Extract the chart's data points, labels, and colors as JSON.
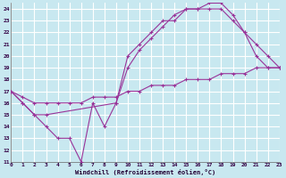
{
  "bg_color": "#c8e8f0",
  "grid_color": "#aaccdd",
  "line_color": "#993399",
  "xlabel": "Windchill (Refroidissement éolien,°C)",
  "xlim": [
    0,
    23
  ],
  "ylim": [
    11,
    24.5
  ],
  "xticks": [
    0,
    1,
    2,
    3,
    4,
    5,
    6,
    7,
    8,
    9,
    10,
    11,
    12,
    13,
    14,
    15,
    16,
    17,
    18,
    19,
    20,
    21,
    22,
    23
  ],
  "yticks": [
    11,
    12,
    13,
    14,
    15,
    16,
    17,
    18,
    19,
    20,
    21,
    22,
    23,
    24
  ],
  "line1_x": [
    0,
    1,
    2,
    3,
    4,
    5,
    6,
    7,
    8,
    9,
    10,
    11,
    12,
    13,
    14,
    15,
    16,
    17,
    18,
    19,
    20,
    21,
    22,
    23
  ],
  "line1_y": [
    17,
    16,
    15,
    14,
    13,
    13,
    11,
    16,
    14,
    16,
    20,
    21,
    22,
    23,
    23,
    24,
    24,
    24,
    24,
    23,
    22,
    20,
    19,
    19
  ],
  "line2_x": [
    0,
    1,
    2,
    3,
    9,
    10,
    11,
    12,
    13,
    14,
    15,
    16,
    17,
    18,
    19,
    20,
    21,
    22,
    23
  ],
  "line2_y": [
    17,
    16,
    15,
    15,
    16,
    19,
    20.5,
    21.5,
    22.5,
    23.5,
    24,
    24,
    24.5,
    24.5,
    23.5,
    22,
    21,
    20,
    19
  ],
  "line3_x": [
    0,
    1,
    2,
    3,
    4,
    5,
    6,
    7,
    8,
    9,
    10,
    11,
    12,
    13,
    14,
    15,
    16,
    17,
    18,
    19,
    20,
    21,
    22,
    23
  ],
  "line3_y": [
    17,
    16.5,
    16,
    16,
    16,
    16,
    16,
    16.5,
    16.5,
    16.5,
    17,
    17,
    17.5,
    17.5,
    17.5,
    18,
    18,
    18,
    18.5,
    18.5,
    18.5,
    19,
    19,
    19
  ]
}
